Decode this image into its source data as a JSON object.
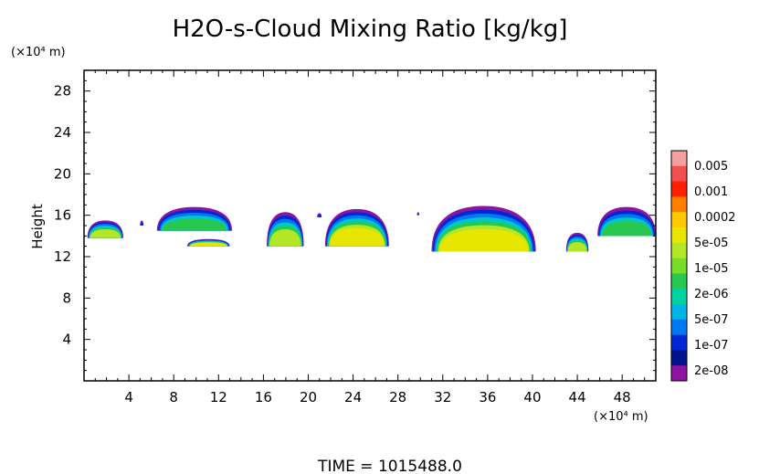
{
  "chart_data": {
    "type": "heatmap",
    "title": "H2O-s-Cloud Mixing Ratio [kg/kg]",
    "ylabel": "Height",
    "x_unit": "(×10⁴ m)",
    "y_unit": "(×10⁴ m)",
    "xlim": [
      0,
      51
    ],
    "ylim": [
      0,
      30
    ],
    "xticks": [
      4,
      8,
      12,
      16,
      20,
      24,
      28,
      32,
      36,
      40,
      44,
      48
    ],
    "yticks": [
      4,
      8,
      12,
      16,
      20,
      24,
      28
    ],
    "colorbar": {
      "labels": [
        "0.005",
        "0.001",
        "0.0002",
        "5e-05",
        "1e-05",
        "2e-06",
        "5e-07",
        "1e-07",
        "2e-08"
      ],
      "colors_top_to_bottom": [
        "#f4a0a0",
        "#f05050",
        "#ff2000",
        "#ff8000",
        "#ffc800",
        "#e6e600",
        "#b4e628",
        "#78dc28",
        "#28c850",
        "#00d2a0",
        "#00b4e6",
        "#0078f0",
        "#0028d2",
        "#00148c",
        "#8c14a0"
      ]
    },
    "cloud_cells": [
      {
        "x0": 0.3,
        "x1": 3.5,
        "y_base": 13.8,
        "y_top": 15.5,
        "max_level": "1e-05"
      },
      {
        "x0": 5.0,
        "x1": 5.3,
        "y_base": 15.0,
        "y_top": 15.5,
        "max_level": "2e-08"
      },
      {
        "x0": 6.5,
        "x1": 13.2,
        "y_base": 14.5,
        "y_top": 16.8,
        "max_level": "2e-06"
      },
      {
        "x0": 9.2,
        "x1": 13.0,
        "y_base": 13.0,
        "y_top": 13.7,
        "max_level": "5e-05"
      },
      {
        "x0": 16.3,
        "x1": 19.6,
        "y_base": 13.0,
        "y_top": 16.3,
        "max_level": "1e-05"
      },
      {
        "x0": 20.8,
        "x1": 21.2,
        "y_base": 15.8,
        "y_top": 16.2,
        "max_level": "2e-08"
      },
      {
        "x0": 21.5,
        "x1": 27.2,
        "y_base": 13.0,
        "y_top": 16.6,
        "max_level": "5e-05"
      },
      {
        "x0": 29.7,
        "x1": 29.9,
        "y_base": 16.0,
        "y_top": 16.3,
        "max_level": "2e-08"
      },
      {
        "x0": 31.0,
        "x1": 40.3,
        "y_base": 12.5,
        "y_top": 16.9,
        "max_level": "5e-05"
      },
      {
        "x0": 43.0,
        "x1": 45.0,
        "y_base": 12.5,
        "y_top": 14.3,
        "max_level": "1e-05"
      },
      {
        "x0": 45.8,
        "x1": 51.0,
        "y_base": 14.0,
        "y_top": 16.8,
        "max_level": "2e-06"
      }
    ]
  },
  "footer": {
    "time_text": "TIME  =  1015488.0"
  }
}
